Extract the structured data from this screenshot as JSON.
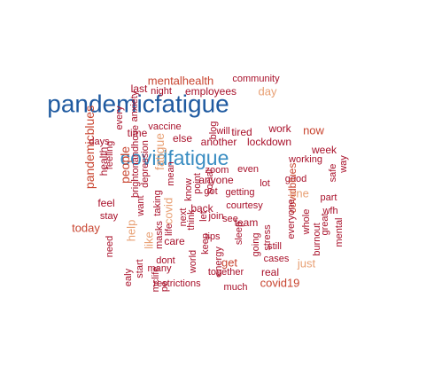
{
  "colors": {
    "dark_blue": "#1f5aa0",
    "mid_blue": "#3a8dc2",
    "dark_red": "#a8102a",
    "mid_red": "#c8442f",
    "light_orange": "#e8a074"
  },
  "words": [
    {
      "text": "pandemicfatigue",
      "weight": 28,
      "color": "dark_blue",
      "rotate": 0
    },
    {
      "text": "covidfatigue",
      "weight": 23,
      "color": "mid_blue",
      "rotate": 0
    },
    {
      "text": "mentalhealth",
      "weight": 13,
      "color": "mid_red",
      "rotate": 0
    },
    {
      "text": "community",
      "weight": 11,
      "color": "dark_red",
      "rotate": 0
    },
    {
      "text": "employees",
      "weight": 12,
      "color": "dark_red",
      "rotate": 0
    },
    {
      "text": "day",
      "weight": 13,
      "color": "light_orange",
      "rotate": 0
    },
    {
      "text": "last",
      "weight": 12,
      "color": "dark_red",
      "rotate": 0
    },
    {
      "text": "night",
      "weight": 11,
      "color": "dark_red",
      "rotate": 0
    },
    {
      "text": "anxiety",
      "weight": 11,
      "color": "dark_red",
      "rotate": -90
    },
    {
      "text": "every",
      "weight": 11,
      "color": "dark_red",
      "rotate": -90
    },
    {
      "text": "pandemicblues",
      "weight": 14,
      "color": "mid_red",
      "rotate": -90
    },
    {
      "text": "health",
      "weight": 12,
      "color": "dark_red",
      "rotate": -90
    },
    {
      "text": "feeling",
      "weight": 11,
      "color": "dark_red",
      "rotate": -90
    },
    {
      "text": "people",
      "weight": 14,
      "color": "mid_red",
      "rotate": -90
    },
    {
      "text": "brightonandhove",
      "weight": 11,
      "color": "dark_red",
      "rotate": -90
    },
    {
      "text": "depression",
      "weight": 11,
      "color": "dark_red",
      "rotate": -90
    },
    {
      "text": "fatigue",
      "weight": 14,
      "color": "light_orange",
      "rotate": -90
    },
    {
      "text": "days",
      "weight": 11,
      "color": "dark_red",
      "rotate": 0
    },
    {
      "text": "time",
      "weight": 12,
      "color": "dark_red",
      "rotate": 0
    },
    {
      "text": "vaccine",
      "weight": 11,
      "color": "dark_red",
      "rotate": 0
    },
    {
      "text": "will",
      "weight": 11,
      "color": "dark_red",
      "rotate": 0
    },
    {
      "text": "tired",
      "weight": 12,
      "color": "dark_red",
      "rotate": 0
    },
    {
      "text": "else",
      "weight": 12,
      "color": "dark_red",
      "rotate": 0
    },
    {
      "text": "blog",
      "weight": 11,
      "color": "dark_red",
      "rotate": -90
    },
    {
      "text": "another",
      "weight": 12,
      "color": "dark_red",
      "rotate": 0
    },
    {
      "text": "work",
      "weight": 12,
      "color": "dark_red",
      "rotate": 0
    },
    {
      "text": "now",
      "weight": 13,
      "color": "mid_red",
      "rotate": 0
    },
    {
      "text": "lockdown",
      "weight": 12,
      "color": "dark_red",
      "rotate": 0
    },
    {
      "text": "week",
      "weight": 12,
      "color": "dark_red",
      "rotate": 0
    },
    {
      "text": "working",
      "weight": 11,
      "color": "dark_red",
      "rotate": 0
    },
    {
      "text": "zoom",
      "weight": 11,
      "color": "dark_red",
      "rotate": 0
    },
    {
      "text": "even",
      "weight": 11,
      "color": "dark_red",
      "rotate": 0
    },
    {
      "text": "anyone",
      "weight": 12,
      "color": "dark_red",
      "rotate": 0
    },
    {
      "text": "good",
      "weight": 11,
      "color": "dark_red",
      "rotate": 0
    },
    {
      "text": "way",
      "weight": 11,
      "color": "dark_red",
      "rotate": -90
    },
    {
      "text": "safe",
      "weight": 11,
      "color": "dark_red",
      "rotate": -90
    },
    {
      "text": "mean",
      "weight": 11,
      "color": "dark_red",
      "rotate": -90
    },
    {
      "text": "point",
      "weight": 11,
      "color": "dark_red",
      "rotate": -90
    },
    {
      "text": "know",
      "weight": 11,
      "color": "dark_red",
      "rotate": -90
    },
    {
      "text": "social",
      "weight": 11,
      "color": "dark_red",
      "rotate": -90
    },
    {
      "text": "got",
      "weight": 11,
      "color": "dark_red",
      "rotate": 0
    },
    {
      "text": "getting",
      "weight": 11,
      "color": "dark_red",
      "rotate": 0
    },
    {
      "text": "lot",
      "weight": 11,
      "color": "dark_red",
      "rotate": 0
    },
    {
      "text": "covidblues",
      "weight": 12,
      "color": "mid_red",
      "rotate": -90
    },
    {
      "text": "one",
      "weight": 13,
      "color": "light_orange",
      "rotate": 0
    },
    {
      "text": "part",
      "weight": 11,
      "color": "dark_red",
      "rotate": 0
    },
    {
      "text": "wfh",
      "weight": 11,
      "color": "dark_red",
      "rotate": 0
    },
    {
      "text": "feel",
      "weight": 12,
      "color": "dark_red",
      "rotate": 0
    },
    {
      "text": "stay",
      "weight": 11,
      "color": "dark_red",
      "rotate": 0
    },
    {
      "text": "want",
      "weight": 11,
      "color": "dark_red",
      "rotate": -90
    },
    {
      "text": "taking",
      "weight": 11,
      "color": "dark_red",
      "rotate": -90
    },
    {
      "text": "covid",
      "weight": 13,
      "color": "light_orange",
      "rotate": -90
    },
    {
      "text": "next",
      "weight": 11,
      "color": "dark_red",
      "rotate": -90
    },
    {
      "text": "think",
      "weight": 11,
      "color": "dark_red",
      "rotate": -90
    },
    {
      "text": "let",
      "weight": 11,
      "color": "dark_red",
      "rotate": -90
    },
    {
      "text": "back",
      "weight": 12,
      "color": "dark_red",
      "rotate": 0
    },
    {
      "text": "join",
      "weight": 11,
      "color": "dark_red",
      "rotate": 0
    },
    {
      "text": "see",
      "weight": 11,
      "color": "dark_red",
      "rotate": 0
    },
    {
      "text": "courtesy",
      "weight": 11,
      "color": "dark_red",
      "rotate": 0
    },
    {
      "text": "everyone",
      "weight": 11,
      "color": "dark_red",
      "rotate": -90
    },
    {
      "text": "whole",
      "weight": 11,
      "color": "dark_red",
      "rotate": -90
    },
    {
      "text": "great",
      "weight": 11,
      "color": "dark_red",
      "rotate": -90
    },
    {
      "text": "mental",
      "weight": 11,
      "color": "dark_red",
      "rotate": -90
    },
    {
      "text": "today",
      "weight": 13,
      "color": "mid_red",
      "rotate": 0
    },
    {
      "text": "help",
      "weight": 13,
      "color": "light_orange",
      "rotate": -90
    },
    {
      "text": "masks",
      "weight": 11,
      "color": "dark_red",
      "rotate": -90
    },
    {
      "text": "life",
      "weight": 11,
      "color": "dark_red",
      "rotate": -90
    },
    {
      "text": "care",
      "weight": 12,
      "color": "dark_red",
      "rotate": 0
    },
    {
      "text": "team",
      "weight": 12,
      "color": "dark_red",
      "rotate": 0
    },
    {
      "text": "sleep",
      "weight": 11,
      "color": "dark_red",
      "rotate": -90
    },
    {
      "text": "stress",
      "weight": 11,
      "color": "dark_red",
      "rotate": -90
    },
    {
      "text": "need",
      "weight": 11,
      "color": "dark_red",
      "rotate": -90
    },
    {
      "text": "like",
      "weight": 13,
      "color": "light_orange",
      "rotate": -90
    },
    {
      "text": "keep",
      "weight": 11,
      "color": "dark_red",
      "rotate": -90
    },
    {
      "text": "tips",
      "weight": 11,
      "color": "dark_red",
      "rotate": 0
    },
    {
      "text": "going",
      "weight": 11,
      "color": "dark_red",
      "rotate": -90
    },
    {
      "text": "still",
      "weight": 11,
      "color": "dark_red",
      "rotate": 0
    },
    {
      "text": "burnout",
      "weight": 11,
      "color": "dark_red",
      "rotate": -90
    },
    {
      "text": "dont",
      "weight": 11,
      "color": "dark_red",
      "rotate": 0
    },
    {
      "text": "get",
      "weight": 13,
      "color": "mid_red",
      "rotate": 0
    },
    {
      "text": "cases",
      "weight": 11,
      "color": "dark_red",
      "rotate": 0
    },
    {
      "text": "world",
      "weight": 11,
      "color": "dark_red",
      "rotate": -90
    },
    {
      "text": "energy",
      "weight": 11,
      "color": "dark_red",
      "rotate": -90
    },
    {
      "text": "start",
      "weight": 11,
      "color": "dark_red",
      "rotate": -90
    },
    {
      "text": "many",
      "weight": 11,
      "color": "dark_red",
      "rotate": 0
    },
    {
      "text": "just",
      "weight": 13,
      "color": "light_orange",
      "rotate": 0
    },
    {
      "text": "mclife",
      "weight": 11,
      "color": "dark_red",
      "rotate": -90
    },
    {
      "text": "together",
      "weight": 11,
      "color": "dark_red",
      "rotate": 0
    },
    {
      "text": "real",
      "weight": 12,
      "color": "dark_red",
      "rotate": 0
    },
    {
      "text": "restrictions",
      "weight": 11,
      "color": "dark_red",
      "rotate": 0
    },
    {
      "text": "covid19",
      "weight": 13,
      "color": "mid_red",
      "rotate": 0
    },
    {
      "text": "much",
      "weight": 11,
      "color": "dark_red",
      "rotate": 0
    },
    {
      "text": "ealy",
      "weight": 11,
      "color": "dark_red",
      "rotate": -90
    },
    {
      "text": "pe",
      "weight": 11,
      "color": "dark_red",
      "rotate": -90
    }
  ]
}
